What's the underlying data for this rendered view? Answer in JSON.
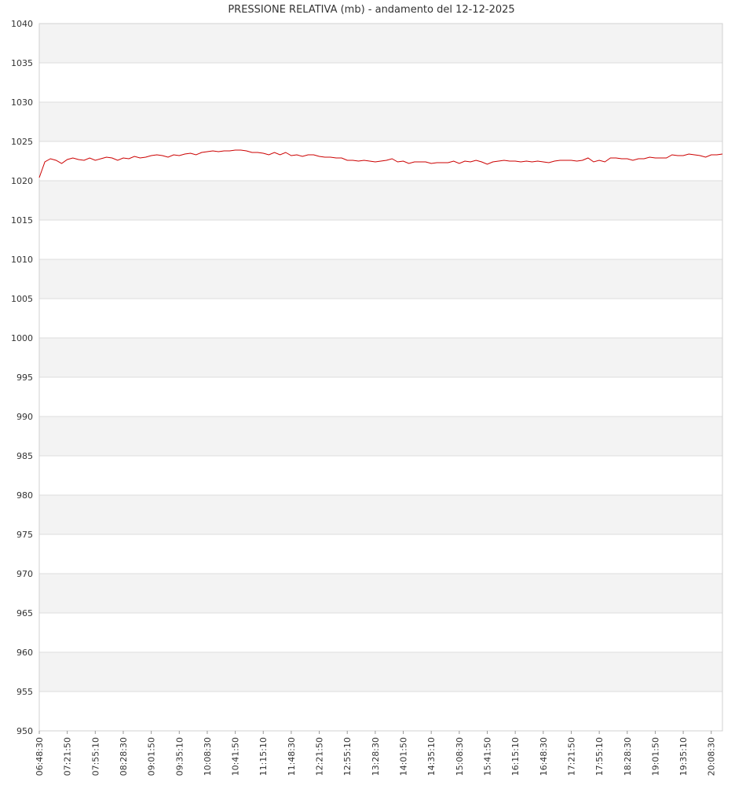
{
  "chart_data": {
    "type": "line",
    "title": "PRESSIONE RELATIVA (mb) - andamento del 12-12-2025",
    "categories": [
      "06:48:30",
      null,
      null,
      null,
      null,
      "07:21:50",
      null,
      null,
      null,
      null,
      "07:55:10",
      null,
      null,
      null,
      null,
      "08:28:30",
      null,
      null,
      null,
      null,
      "09:01:50",
      null,
      null,
      null,
      null,
      "09:35:10",
      null,
      null,
      null,
      null,
      "10:08:30",
      null,
      null,
      null,
      null,
      "10:41:50",
      null,
      null,
      null,
      null,
      "11:15:10",
      null,
      null,
      null,
      null,
      "11:48:30",
      null,
      null,
      null,
      null,
      "12:21:50",
      null,
      null,
      null,
      null,
      "12:55:10",
      null,
      null,
      null,
      null,
      "13:28:30",
      null,
      null,
      null,
      null,
      "14:01:50",
      null,
      null,
      null,
      null,
      "14:35:10",
      null,
      null,
      null,
      null,
      "15:08:30",
      null,
      null,
      null,
      null,
      "15:41:50",
      null,
      null,
      null,
      null,
      "16:15:10",
      null,
      null,
      null,
      null,
      "16:48:30",
      null,
      null,
      null,
      null,
      "17:21:50",
      null,
      null,
      null,
      null,
      "17:55:10",
      null,
      null,
      null,
      null,
      "18:28:30",
      null,
      null,
      null,
      null,
      "19:01:50",
      null,
      null,
      null,
      null,
      "19:35:10",
      null,
      null,
      null,
      null,
      "20:08:30",
      null,
      null
    ],
    "series": [
      {
        "name": "PRESSIONE RELATIVA",
        "color": "#cc0000",
        "values": [
          1020.4,
          1022.4,
          1022.8,
          1022.6,
          1022.2,
          1022.7,
          1022.9,
          1022.7,
          1022.6,
          1022.9,
          1022.6,
          1022.8,
          1023.0,
          1022.9,
          1022.6,
          1022.9,
          1022.8,
          1023.1,
          1022.9,
          1023.0,
          1023.2,
          1023.3,
          1023.2,
          1023.0,
          1023.3,
          1023.2,
          1023.4,
          1023.5,
          1023.3,
          1023.6,
          1023.7,
          1023.8,
          1023.7,
          1023.8,
          1023.8,
          1023.9,
          1023.9,
          1023.8,
          1023.6,
          1023.6,
          1023.5,
          1023.3,
          1023.6,
          1023.3,
          1023.6,
          1023.2,
          1023.3,
          1023.1,
          1023.3,
          1023.3,
          1023.1,
          1023.0,
          1023.0,
          1022.9,
          1022.9,
          1022.6,
          1022.6,
          1022.5,
          1022.6,
          1022.5,
          1022.4,
          1022.5,
          1022.6,
          1022.8,
          1022.4,
          1022.5,
          1022.2,
          1022.4,
          1022.4,
          1022.4,
          1022.2,
          1022.3,
          1022.3,
          1022.3,
          1022.5,
          1022.2,
          1022.5,
          1022.4,
          1022.6,
          1022.4,
          1022.1,
          1022.4,
          1022.5,
          1022.6,
          1022.5,
          1022.5,
          1022.4,
          1022.5,
          1022.4,
          1022.5,
          1022.4,
          1022.3,
          1022.5,
          1022.6,
          1022.6,
          1022.6,
          1022.5,
          1022.6,
          1022.9,
          1022.4,
          1022.6,
          1022.4,
          1022.9,
          1022.9,
          1022.8,
          1022.8,
          1022.6,
          1022.8,
          1022.8,
          1023.0,
          1022.9,
          1022.9,
          1022.9,
          1023.3,
          1023.2,
          1023.2,
          1023.4,
          1023.3,
          1023.2,
          1023.0,
          1023.3,
          1023.3,
          1023.4
        ]
      }
    ],
    "ylim": [
      950,
      1040
    ],
    "yticks": [
      950,
      955,
      960,
      965,
      970,
      975,
      980,
      985,
      990,
      995,
      1000,
      1005,
      1010,
      1015,
      1020,
      1025,
      1030,
      1035,
      1040
    ],
    "grid": true,
    "band_color": "#f3f3f3",
    "legend": false
  }
}
